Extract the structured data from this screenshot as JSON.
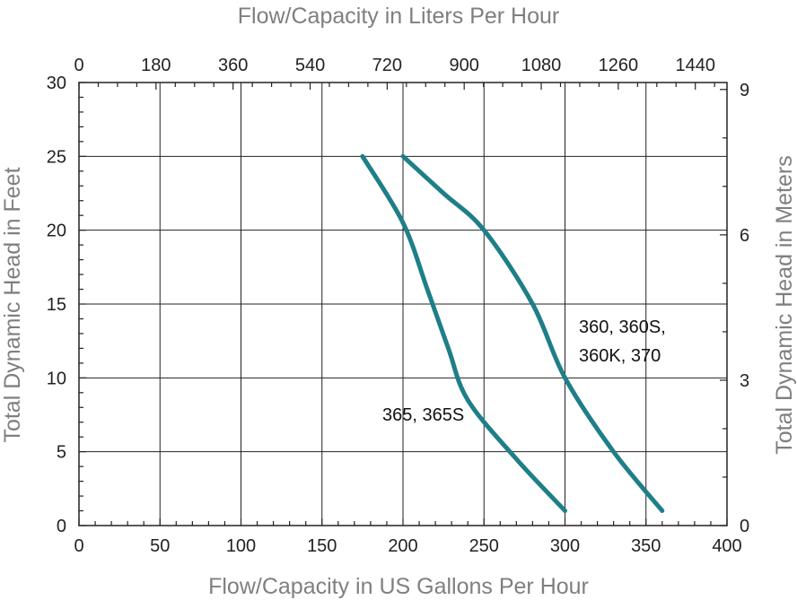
{
  "chart_data": {
    "type": "line",
    "title": "",
    "xlabel": "Flow/Capacity in US Gallons Per Hour",
    "ylabel": "Total Dynamic Head in Feet",
    "x2label": "Flow/Capacity in Liters Per Hour",
    "y2label": "Total Dynamic Head in Meters",
    "xlim": [
      0,
      400
    ],
    "ylim": [
      0,
      30
    ],
    "x2lim": [
      0,
      1514
    ],
    "y2lim": [
      0,
      9.144
    ],
    "grid": true,
    "xticks": [
      "0",
      "50",
      "100",
      "150",
      "200",
      "250",
      "300",
      "350",
      "400"
    ],
    "xtick_values": [
      0,
      50,
      100,
      150,
      200,
      250,
      300,
      350,
      400
    ],
    "yticks": [
      "0",
      "5",
      "10",
      "15",
      "20",
      "25",
      "30"
    ],
    "ytick_values": [
      0,
      5,
      10,
      15,
      20,
      25,
      30
    ],
    "x2ticks": [
      "0",
      "180",
      "360",
      "540",
      "720",
      "900",
      "1080",
      "1260",
      "1440"
    ],
    "x2tick_values": [
      0,
      180,
      360,
      540,
      720,
      900,
      1080,
      1260,
      1440
    ],
    "y2ticks": [
      "0",
      "3",
      "6",
      "9"
    ],
    "y2tick_values": [
      0,
      3,
      6,
      9
    ],
    "series": [
      {
        "name": "365, 365S",
        "color": "#1e7f88",
        "points": [
          [
            175,
            25
          ],
          [
            200,
            20.5
          ],
          [
            215,
            16
          ],
          [
            228,
            12
          ],
          [
            240,
            8.5
          ],
          [
            270,
            4.5
          ],
          [
            300,
            1
          ]
        ]
      },
      {
        "name": "360, 360S, 360K, 370",
        "color": "#1e7f88",
        "points": [
          [
            200,
            25
          ],
          [
            225,
            22.5
          ],
          [
            250,
            20
          ],
          [
            280,
            15
          ],
          [
            300,
            10
          ],
          [
            330,
            5
          ],
          [
            360,
            1
          ]
        ]
      }
    ],
    "annotations": [
      {
        "lines": [
          "365, 365S"
        ]
      },
      {
        "lines": [
          "360, 360S,",
          "360K, 370"
        ]
      }
    ]
  }
}
